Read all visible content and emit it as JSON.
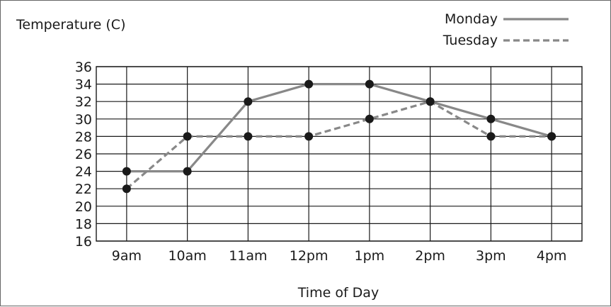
{
  "chart_data": {
    "type": "line",
    "ylabel": "Temperature (C)",
    "xlabel": "Time of Day",
    "categories": [
      "9am",
      "10am",
      "11am",
      "12pm",
      "1pm",
      "2pm",
      "3pm",
      "4pm"
    ],
    "yticks": [
      16,
      18,
      20,
      22,
      24,
      26,
      28,
      30,
      32,
      34,
      36
    ],
    "ylim": [
      16,
      36
    ],
    "grid": true,
    "legend_position": "top-right",
    "series": [
      {
        "name": "Monday",
        "style": "solid",
        "color": "#888888",
        "values": [
          24,
          24,
          32,
          34,
          34,
          32,
          30,
          28
        ]
      },
      {
        "name": "Tuesday",
        "style": "dashed",
        "color": "#888888",
        "values": [
          22,
          28,
          28,
          28,
          30,
          32,
          28,
          28
        ]
      }
    ],
    "marker_color": "#1a1a1a"
  }
}
